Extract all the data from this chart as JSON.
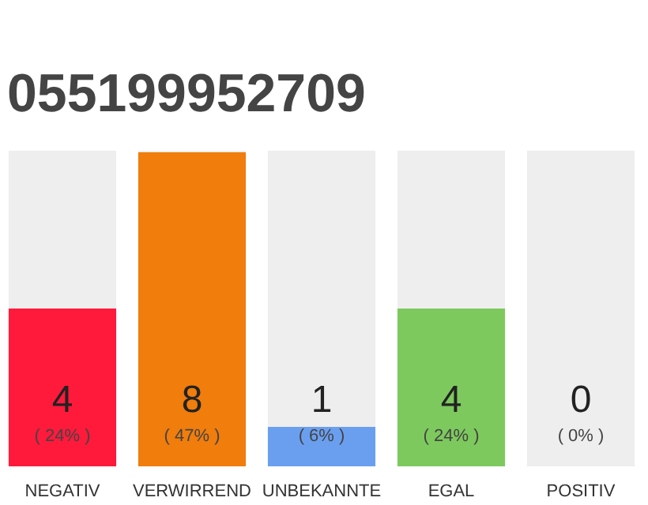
{
  "chart_data": {
    "type": "bar",
    "title": "055199952709",
    "categories": [
      "NEGATIV",
      "VERWIRREND",
      "UNBEKANNTE",
      "EGAL",
      "POSITIV"
    ],
    "stacked": true,
    "series": [
      {
        "colors": [
          "#ff1a3c",
          "#f07d0c",
          "#6a9ff0",
          "#7dc95e",
          "#22aa44"
        ],
        "values": [
          4,
          8,
          1,
          4,
          0
        ],
        "value_labels": [
          "4",
          "8",
          "1",
          "4",
          "0"
        ]
      },
      {
        "color": "#eeeeee",
        "values": [
          4,
          0,
          7,
          4,
          8
        ]
      }
    ],
    "annotations": [
      "( 24% )",
      "( 47% )",
      "( 6% )",
      "( 24% )",
      "( 0% )"
    ],
    "grid": false
  }
}
